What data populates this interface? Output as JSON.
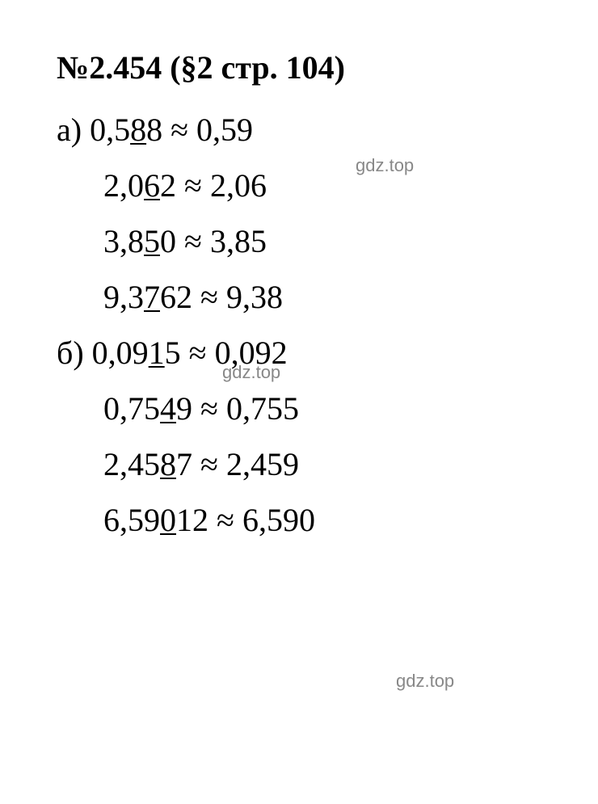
{
  "title": {
    "problem_number": "№2.454",
    "section": "(§2 стр. 104)"
  },
  "colors": {
    "text": "#000000",
    "background": "#ffffff",
    "watermark": "#888888"
  },
  "typography": {
    "title_fontsize": 40,
    "title_weight": "bold",
    "line_fontsize": 40,
    "watermark_fontsize": 22,
    "font_family": "Times New Roman"
  },
  "lines": [
    {
      "label": "а) ",
      "left_prefix": "0,5",
      "left_underlined": "8",
      "left_suffix": "8",
      "approx": " ≈ ",
      "right": "0,59",
      "indented": false
    },
    {
      "label": "",
      "left_prefix": "2,0",
      "left_underlined": "6",
      "left_suffix": "2",
      "approx": " ≈ ",
      "right": "2,06",
      "indented": true
    },
    {
      "label": "",
      "left_prefix": "3,8",
      "left_underlined": "5",
      "left_suffix": "0",
      "approx": " ≈ ",
      "right": "3,85",
      "indented": true
    },
    {
      "label": "",
      "left_prefix": "9,3",
      "left_underlined": "7",
      "left_suffix": "62",
      "approx": " ≈ ",
      "right": "9,38",
      "indented": true
    },
    {
      "label": "б) ",
      "left_prefix": "0,09",
      "left_underlined": "1",
      "left_suffix": "5",
      "approx": " ≈ ",
      "right": "0,092",
      "indented": false
    },
    {
      "label": "",
      "left_prefix": "0,75",
      "left_underlined": "4",
      "left_suffix": "9",
      "approx": " ≈ ",
      "right": "0,755",
      "indented": true
    },
    {
      "label": "",
      "left_prefix": "2,45",
      "left_underlined": "8",
      "left_suffix": "7",
      "approx": " ≈ ",
      "right": "2,459",
      "indented": true
    },
    {
      "label": "",
      "left_prefix": "6,59",
      "left_underlined": "0",
      "left_suffix": "12",
      "approx": " ≈ ",
      "right": "6,590",
      "indented": true
    }
  ],
  "watermarks": [
    {
      "text": "gdz.top"
    },
    {
      "text": "gdz.top"
    },
    {
      "text": "gdz.top"
    }
  ]
}
